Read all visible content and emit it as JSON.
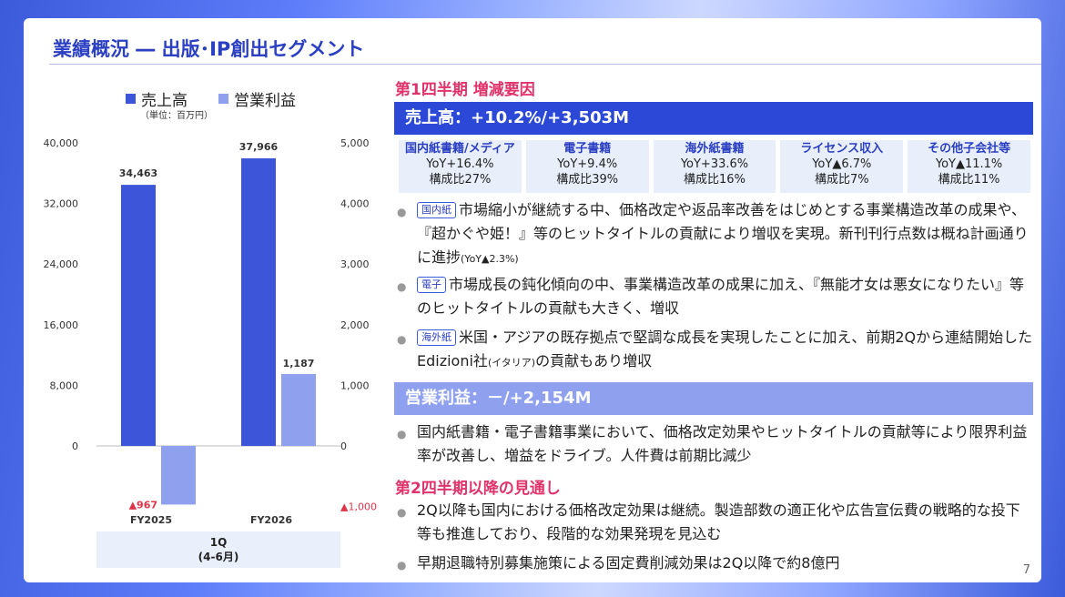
{
  "title": "業績概況 ― 出版･IP創出セグメント",
  "page_number": "7",
  "colors": {
    "revenue": "#3d55d9",
    "profit": "#8ea0ee",
    "neg": "#e0334a"
  },
  "chart_data": {
    "type": "bar",
    "categories": [
      "FY2025",
      "FY2026"
    ],
    "group_label": "1Q",
    "group_sublabel": "(4-6月)",
    "unit_note": "（単位：百万円）",
    "series": [
      {
        "name": "売上高",
        "axis": "left",
        "values": [
          34463,
          37966
        ],
        "labels": [
          "34,463",
          "37,966"
        ]
      },
      {
        "name": "営業利益",
        "axis": "right",
        "values": [
          -967,
          1187
        ],
        "labels": [
          "▲967",
          "1,187"
        ]
      }
    ],
    "left_axis": {
      "min": -8000,
      "max": 40000,
      "ticks": [
        "0",
        "8,000",
        "16,000",
        "24,000",
        "32,000",
        "40,000"
      ],
      "tick_values": [
        0,
        8000,
        16000,
        24000,
        32000,
        40000
      ]
    },
    "right_axis": {
      "min": -1000,
      "max": 5000,
      "ticks": [
        "▲1,000",
        "0",
        "1,000",
        "2,000",
        "3,000",
        "4,000",
        "5,000"
      ],
      "tick_values": [
        -1000,
        0,
        1000,
        2000,
        3000,
        4000,
        5000
      ]
    }
  },
  "q1": {
    "heading": "第1四半期 増減要因",
    "revenue_band": "売上高：+10.2%/+3,503M",
    "columns": [
      {
        "name": "国内紙書籍/メディア",
        "yoy": "YoY+16.4%",
        "share": "構成比27%"
      },
      {
        "name": "電子書籍",
        "yoy": "YoY+9.4%",
        "share": "構成比39%"
      },
      {
        "name": "海外紙書籍",
        "yoy": "YoY+33.6%",
        "share": "構成比16%"
      },
      {
        "name": "ライセンス収入",
        "yoy": "YoY▲6.7%",
        "share": "構成比7%"
      },
      {
        "name": "その他子会社等",
        "yoy": "YoY▲11.1%",
        "share": "構成比11%"
      }
    ],
    "bullets": [
      {
        "tag": "国内紙",
        "text": "市場縮小が継続する中、価格改定や返品率改善をはじめとする事業構造改革の成果や、『超かぐや姫！』等のヒットタイトルの貢献により増収を実現。新刊刊行点数は概ね計画通りに進捗",
        "note": "(YoY▲2.3%)"
      },
      {
        "tag": "電子",
        "text": "市場成長の鈍化傾向の中、事業構造改革の成果に加え、『無能才女は悪女になりたい』等のヒットタイトルの貢献も大きく、増収",
        "note": ""
      },
      {
        "tag": "海外紙",
        "text_a": "米国・アジアの既存拠点で堅調な成長を実現したことに加え、前期2Qから連結開始したEdizioni社",
        "note": "(イタリア)",
        "text_b": "の貢献もあり増収"
      }
    ],
    "profit_band": "営業利益：－/+2,154M",
    "profit_bullet": "国内紙書籍・電子書籍事業において、価格改定効果やヒットタイトルの貢献等により限界利益率が改善し、増益をドライブ。人件費は前期比減少"
  },
  "outlook": {
    "heading": "第2四半期以降の見通し",
    "bullets": [
      "2Q以降も国内における価格改定効果は継続。製造部数の適正化や広告宣伝費の戦略的な投下等も推進しており、段階的な効果発現を見込む",
      "早期退職特別募集施策による固定費削減効果は2Q以降で約8億円"
    ]
  }
}
